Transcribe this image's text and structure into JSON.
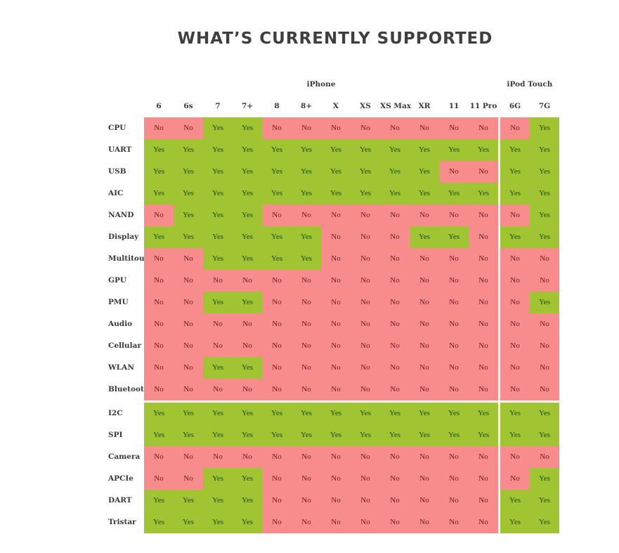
{
  "title": "WHAT’S CURRENTLY SUPPORTED",
  "groups": {
    "iphone": "iPhone",
    "ipod": "iPod Touch"
  },
  "columns": [
    "6",
    "6s",
    "7",
    "7+",
    "8",
    "8+",
    "X",
    "XS",
    "XS Max",
    "XR",
    "11",
    "11 Pro",
    "6G",
    "7G"
  ],
  "values": {
    "yes": "Yes",
    "no": "No"
  },
  "colors": {
    "yes_bg": "#a0c432",
    "no_bg": "#f88c8c"
  },
  "rows": [
    {
      "label": "CPU",
      "cells": [
        0,
        0,
        1,
        1,
        0,
        0,
        0,
        0,
        0,
        0,
        0,
        0,
        0,
        1
      ]
    },
    {
      "label": "UART",
      "cells": [
        1,
        1,
        1,
        1,
        1,
        1,
        1,
        1,
        1,
        1,
        1,
        1,
        1,
        1
      ]
    },
    {
      "label": "USB",
      "cells": [
        1,
        1,
        1,
        1,
        1,
        1,
        1,
        1,
        1,
        1,
        0,
        0,
        1,
        1
      ]
    },
    {
      "label": "AIC",
      "cells": [
        1,
        1,
        1,
        1,
        1,
        1,
        1,
        1,
        1,
        1,
        1,
        1,
        1,
        1
      ]
    },
    {
      "label": "NAND",
      "cells": [
        0,
        1,
        1,
        1,
        0,
        0,
        0,
        0,
        0,
        0,
        0,
        0,
        0,
        1
      ]
    },
    {
      "label": "Display",
      "cells": [
        1,
        1,
        1,
        1,
        1,
        1,
        0,
        0,
        0,
        1,
        1,
        0,
        1,
        1
      ]
    },
    {
      "label": "Multitouch",
      "cells": [
        0,
        0,
        1,
        1,
        1,
        1,
        0,
        0,
        0,
        0,
        0,
        0,
        0,
        0
      ]
    },
    {
      "label": "GPU",
      "cells": [
        0,
        0,
        0,
        0,
        0,
        0,
        0,
        0,
        0,
        0,
        0,
        0,
        0,
        0
      ]
    },
    {
      "label": "PMU",
      "cells": [
        0,
        0,
        1,
        1,
        0,
        0,
        0,
        0,
        0,
        0,
        0,
        0,
        0,
        1
      ]
    },
    {
      "label": "Audio",
      "cells": [
        0,
        0,
        0,
        0,
        0,
        0,
        0,
        0,
        0,
        0,
        0,
        0,
        0,
        0
      ]
    },
    {
      "label": "Cellular",
      "cells": [
        0,
        0,
        0,
        0,
        0,
        0,
        0,
        0,
        0,
        0,
        0,
        0,
        0,
        0
      ]
    },
    {
      "label": "WLAN",
      "cells": [
        0,
        0,
        1,
        1,
        0,
        0,
        0,
        0,
        0,
        0,
        0,
        0,
        0,
        0
      ]
    },
    {
      "label": "Bluetooth",
      "cells": [
        0,
        0,
        0,
        0,
        0,
        0,
        0,
        0,
        0,
        0,
        0,
        0,
        0,
        0
      ]
    },
    {
      "label": "I2C",
      "cells": [
        1,
        1,
        1,
        1,
        1,
        1,
        1,
        1,
        1,
        1,
        1,
        1,
        1,
        1
      ]
    },
    {
      "label": "SPI",
      "cells": [
        1,
        1,
        1,
        1,
        1,
        1,
        1,
        1,
        1,
        1,
        1,
        1,
        1,
        1
      ]
    },
    {
      "label": "Camera",
      "cells": [
        0,
        0,
        0,
        0,
        0,
        0,
        0,
        0,
        0,
        0,
        0,
        0,
        0,
        0
      ]
    },
    {
      "label": "APCIe",
      "cells": [
        0,
        0,
        1,
        1,
        0,
        0,
        0,
        0,
        0,
        0,
        0,
        0,
        0,
        1
      ]
    },
    {
      "label": "DART",
      "cells": [
        1,
        1,
        1,
        1,
        0,
        0,
        0,
        0,
        0,
        0,
        0,
        0,
        1,
        1
      ]
    },
    {
      "label": "Tristar",
      "cells": [
        1,
        1,
        1,
        1,
        0,
        0,
        0,
        0,
        0,
        0,
        0,
        0,
        1,
        1
      ]
    }
  ]
}
